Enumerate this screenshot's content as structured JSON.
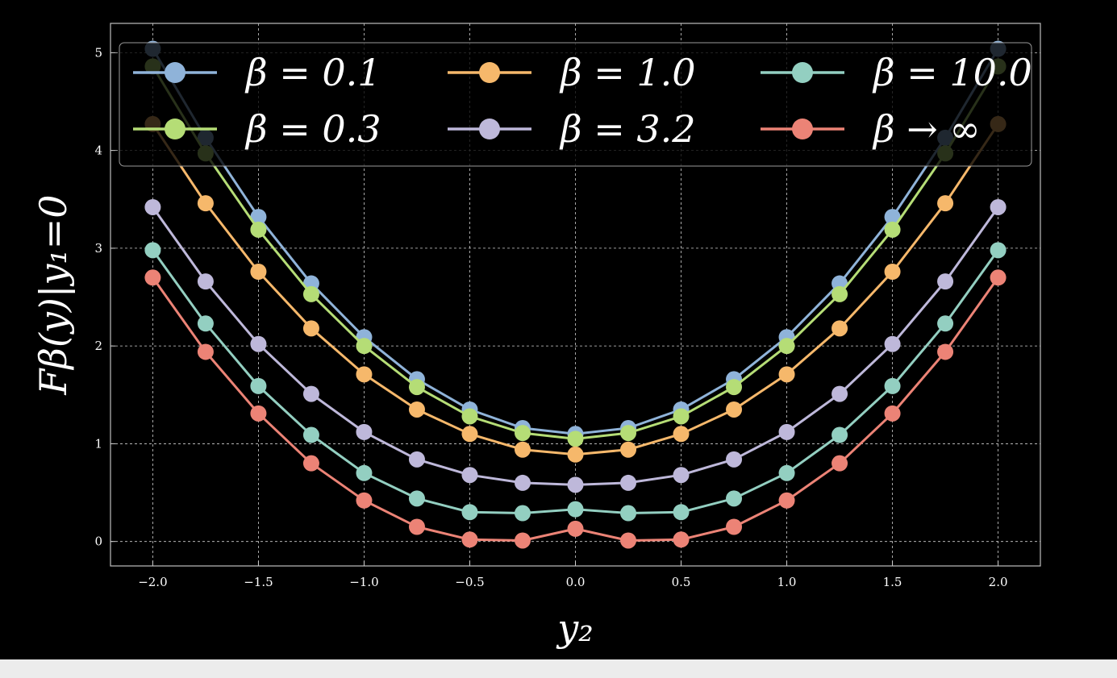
{
  "chart_data": {
    "type": "line",
    "xlabel": "y₂",
    "ylabel": "Fβ(y)|y₁=0",
    "xlim": [
      -2.2,
      2.2
    ],
    "ylim": [
      -0.25,
      5.3
    ],
    "xticks": [
      -2.0,
      -1.5,
      -1.0,
      -0.5,
      0.0,
      0.5,
      1.0,
      1.5,
      2.0
    ],
    "xtick_labels": [
      "−2.0",
      "−1.5",
      "−1.0",
      "−0.5",
      "0.0",
      "0.5",
      "1.0",
      "1.5",
      "2.0"
    ],
    "yticks": [
      0,
      1,
      2,
      3,
      4,
      5
    ],
    "ytick_labels": [
      "0",
      "1",
      "2",
      "3",
      "4",
      "5"
    ],
    "grid": true,
    "legend_position": "top",
    "x": [
      -2.0,
      -1.75,
      -1.5,
      -1.25,
      -1.0,
      -0.75,
      -0.5,
      -0.25,
      0.0,
      0.25,
      0.5,
      0.75,
      1.0,
      1.25,
      1.5,
      1.75,
      2.0
    ],
    "series": [
      {
        "name": "β = 0.1",
        "color": "#8fb3d9",
        "values": [
          5.04,
          4.13,
          3.32,
          2.64,
          2.09,
          1.66,
          1.35,
          1.16,
          1.1,
          1.16,
          1.35,
          1.66,
          2.09,
          2.64,
          3.32,
          4.13,
          5.04
        ]
      },
      {
        "name": "β = 0.3",
        "color": "#b5dd76",
        "values": [
          4.86,
          3.97,
          3.19,
          2.53,
          2.0,
          1.58,
          1.28,
          1.11,
          1.05,
          1.11,
          1.28,
          1.58,
          2.0,
          2.53,
          3.19,
          3.97,
          4.86
        ]
      },
      {
        "name": "β = 1.0",
        "color": "#f6b86b",
        "values": [
          4.27,
          3.46,
          2.76,
          2.18,
          1.71,
          1.35,
          1.1,
          0.94,
          0.89,
          0.94,
          1.1,
          1.35,
          1.71,
          2.18,
          2.76,
          3.46,
          4.27
        ]
      },
      {
        "name": "β = 3.2",
        "color": "#beb8da",
        "values": [
          3.42,
          2.66,
          2.02,
          1.51,
          1.12,
          0.84,
          0.68,
          0.6,
          0.58,
          0.6,
          0.68,
          0.84,
          1.12,
          1.51,
          2.02,
          2.66,
          3.42
        ]
      },
      {
        "name": "β = 10.0",
        "color": "#93cfc1",
        "values": [
          2.98,
          2.23,
          1.59,
          1.09,
          0.7,
          0.44,
          0.3,
          0.29,
          0.33,
          0.29,
          0.3,
          0.44,
          0.7,
          1.09,
          1.59,
          2.23,
          2.98
        ]
      },
      {
        "name": "β → ∞",
        "color": "#ec8376",
        "values": [
          2.7,
          1.94,
          1.31,
          0.8,
          0.42,
          0.15,
          0.02,
          0.01,
          0.13,
          0.01,
          0.02,
          0.15,
          0.42,
          0.8,
          1.31,
          1.94,
          2.7
        ]
      }
    ]
  }
}
